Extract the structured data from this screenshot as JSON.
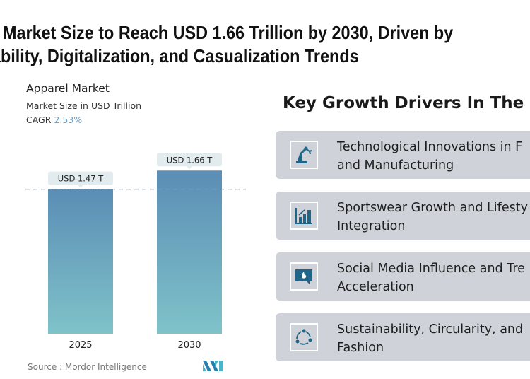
{
  "header": {
    "title_line1": "Market Size to Reach USD 1.66 Trillion by 2030, Driven by",
    "title_line2": "ability, Digitalization, and Casualization Trends"
  },
  "chart_data": {
    "type": "bar",
    "title": "Apparel Market",
    "subtitle": "Market Size in USD Trillion",
    "cagr_label": "CAGR",
    "cagr_value": "2.53%",
    "categories": [
      "2025",
      "2030"
    ],
    "values": [
      1.47,
      1.66
    ],
    "data_labels": [
      "USD 1.47 T",
      "USD 1.66 T"
    ],
    "ylim": [
      0,
      1.7
    ],
    "grid": false,
    "reference_line": 1.47,
    "colors": {
      "bar_top": "#5b8db5",
      "bar_bottom": "#7fc3c9",
      "label_bg": "#e2ecef",
      "dash": "#7a9bb5"
    }
  },
  "source": "Source :  Mordor Intelligence",
  "drivers": {
    "heading": "Key Growth Drivers In The M",
    "items": [
      {
        "icon": "robot-arm-icon",
        "line1": "Technological Innovations in F",
        "line2": "and Manufacturing"
      },
      {
        "icon": "growth-chart-icon",
        "line1": "Sportswear Growth and Lifesty",
        "line2": "Integration"
      },
      {
        "icon": "chat-flame-icon",
        "line1": "Social Media Influence and Tre",
        "line2": "Acceleration"
      },
      {
        "icon": "cycle-icon",
        "line1": "Sustainability, Circularity, and",
        "line2": "Fashion"
      }
    ],
    "icon_color": "#1f6587",
    "card_bg": "#cfd3d9"
  }
}
